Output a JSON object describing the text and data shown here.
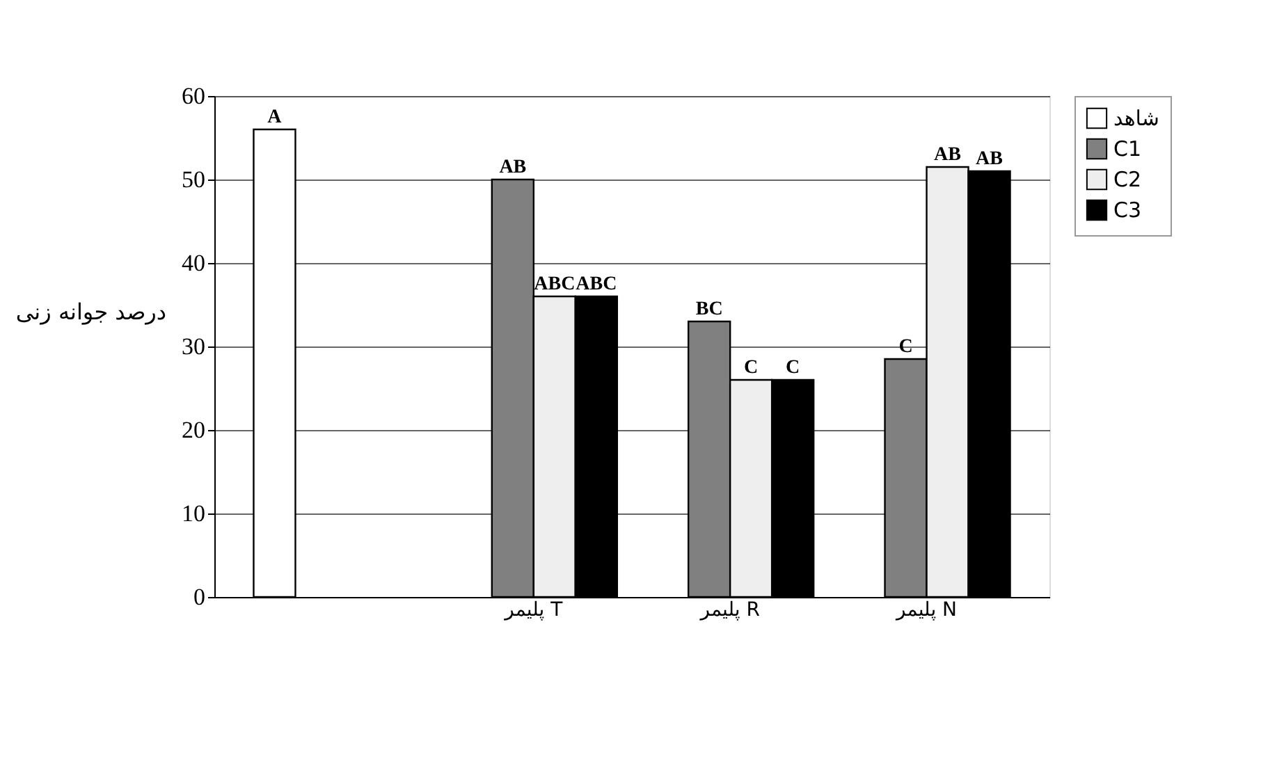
{
  "chart_data": {
    "type": "bar",
    "ylabel": "درصد جوانه زنی",
    "categories": [
      null,
      "پلیمر T",
      "پلیمر R",
      "پلیمر N"
    ],
    "series": [
      {
        "name": "شاهد",
        "color": "#ffffff",
        "values": [
          56,
          null,
          null,
          null
        ],
        "value_labels": [
          "A",
          null,
          null,
          null
        ]
      },
      {
        "name": "C1",
        "color": "#808080",
        "values": [
          null,
          50,
          33,
          28.5
        ],
        "value_labels": [
          null,
          "AB",
          "BC",
          "C"
        ]
      },
      {
        "name": "C2",
        "color": "#eeeeee",
        "values": [
          null,
          36,
          26,
          51.5
        ],
        "value_labels": [
          null,
          "ABC",
          "C",
          "AB"
        ]
      },
      {
        "name": "C3",
        "color": "#000000",
        "values": [
          null,
          36,
          26,
          51
        ],
        "value_labels": [
          null,
          "ABC",
          "C",
          "AB"
        ]
      }
    ],
    "ylim": [
      0,
      60
    ],
    "yticks": [
      0,
      10,
      20,
      30,
      40,
      50,
      60
    ],
    "grid": "y",
    "legend": "right"
  }
}
